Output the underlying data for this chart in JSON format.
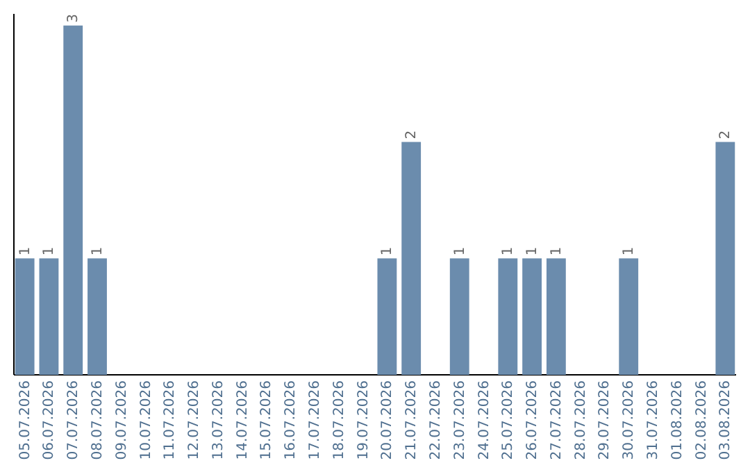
{
  "chart_data": {
    "type": "bar",
    "categories": [
      "05.07.2026",
      "06.07.2026",
      "07.07.2026",
      "08.07.2026",
      "09.07.2026",
      "10.07.2026",
      "11.07.2026",
      "12.07.2026",
      "13.07.2026",
      "14.07.2026",
      "15.07.2026",
      "16.07.2026",
      "17.07.2026",
      "18.07.2026",
      "19.07.2026",
      "20.07.2026",
      "21.07.2026",
      "22.07.2026",
      "23.07.2026",
      "24.07.2026",
      "25.07.2026",
      "26.07.2026",
      "27.07.2026",
      "28.07.2026",
      "29.07.2026",
      "30.07.2026",
      "31.07.2026",
      "01.08.2026",
      "02.08.2026",
      "03.08.2026"
    ],
    "values": [
      1,
      1,
      3,
      1,
      0,
      0,
      0,
      0,
      0,
      0,
      0,
      0,
      0,
      0,
      0,
      1,
      2,
      0,
      1,
      0,
      1,
      1,
      1,
      0,
      0,
      1,
      0,
      0,
      0,
      2
    ],
    "value_labels": [
      "1",
      "1",
      "3",
      "1",
      null,
      null,
      null,
      null,
      null,
      null,
      null,
      null,
      null,
      null,
      null,
      "1",
      "2",
      null,
      "1",
      null,
      "1",
      "1",
      "1",
      null,
      null,
      "1",
      null,
      null,
      null,
      "2"
    ],
    "color": "#6b8cad",
    "ylim": [
      0,
      3.1
    ],
    "tick_labels": "x"
  }
}
